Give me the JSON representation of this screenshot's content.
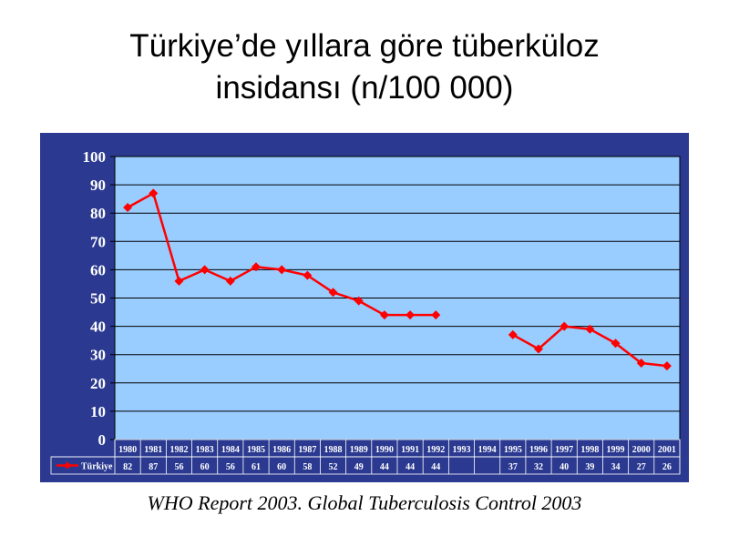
{
  "title": {
    "line1": "Türkiye’de yıllara göre tüberküloz",
    "line2": "insidansı (n/100 000)"
  },
  "caption": "WHO Report 2003. Global Tuberculosis Control 2003",
  "colors": {
    "frame": "#2b3a90",
    "plot_bg": "#99ccff",
    "series": "#ff0000",
    "grid": "#000000",
    "axis_text": "#ffffff"
  },
  "chart_data": {
    "type": "line",
    "title": "Türkiye’de yıllara göre tüberküloz insidansı (n/100 000)",
    "xlabel": "",
    "ylabel": "",
    "ylim": [
      0,
      100
    ],
    "yticks": [
      0,
      10,
      20,
      30,
      40,
      50,
      60,
      70,
      80,
      90,
      100
    ],
    "grid": true,
    "legend": "data-table-left",
    "categories": [
      "1980",
      "1981",
      "1982",
      "1983",
      "1984",
      "1985",
      "1986",
      "1987",
      "1988",
      "1989",
      "1990",
      "1991",
      "1992",
      "1993",
      "1994",
      "1995",
      "1996",
      "1997",
      "1998",
      "1999",
      "2000",
      "2001"
    ],
    "series": [
      {
        "name": "Türkiye",
        "values": [
          82,
          87,
          56,
          60,
          56,
          61,
          60,
          58,
          52,
          49,
          44,
          44,
          44,
          null,
          null,
          37,
          32,
          40,
          39,
          34,
          27,
          26
        ],
        "table_values": [
          "82",
          "87",
          "56",
          "60",
          "56",
          "61",
          "60",
          "58",
          "52",
          "49",
          "44",
          "44",
          "44",
          "",
          "",
          "37",
          "32",
          "40",
          "39",
          "34",
          "27",
          "26"
        ]
      }
    ]
  }
}
